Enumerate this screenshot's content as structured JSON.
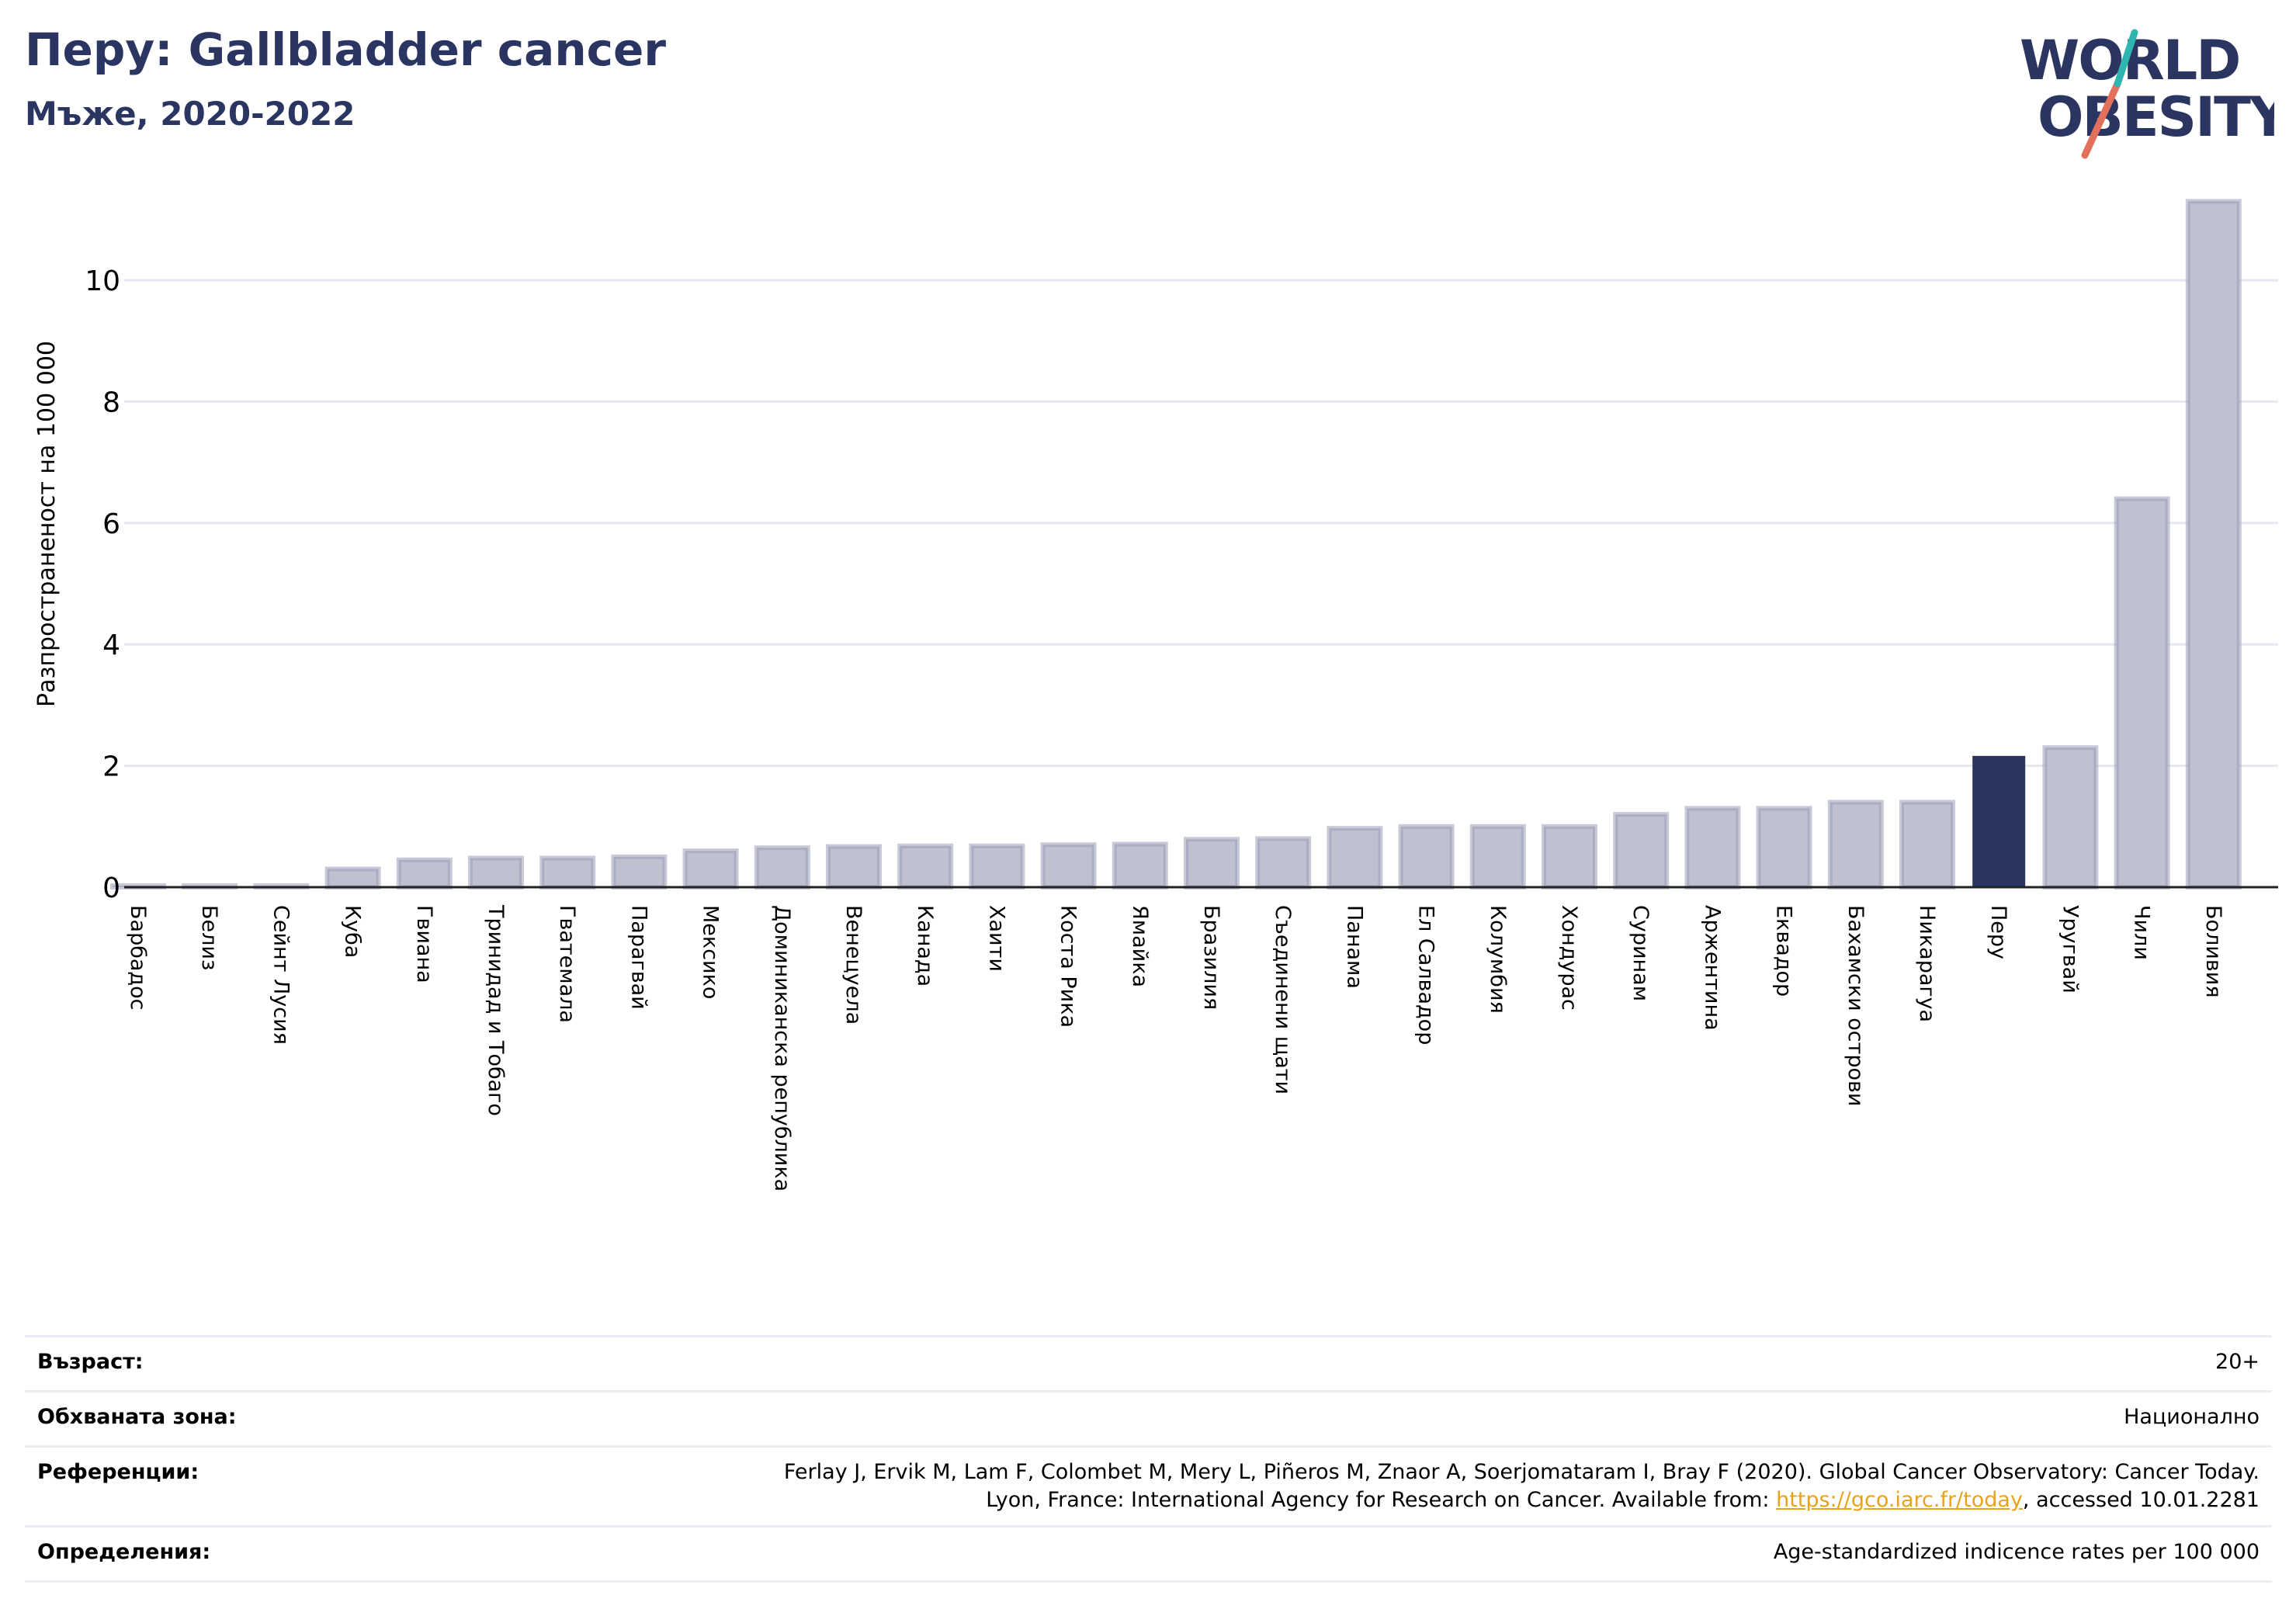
{
  "header": {
    "title": "Перу: Gallbladder cancer",
    "subtitle": "Мъже, 2020-2022"
  },
  "logo": {
    "line1": "WORLD",
    "line2": "OBESITY"
  },
  "colors": {
    "bar": "#bfc1d0",
    "bar_edge": "#9a9fb8",
    "highlight": "#2a3562",
    "grid": "#e6e8f0",
    "text_dark": "#2a3562",
    "link": "#e8a317"
  },
  "chart_data": {
    "type": "bar",
    "ylabel": "Разпространеност  на 100 000",
    "ylim": [
      0,
      11.5
    ],
    "yticks": [
      0,
      2,
      4,
      6,
      8,
      10
    ],
    "highlight": "Перу",
    "grid": true,
    "categories": [
      "Барбадос",
      "Белиз",
      "Сейнт Лусия",
      "Куба",
      "Гвиана",
      "Тринидад и Тобаго",
      "Гватемала",
      "Парагвай",
      "Мексико",
      "Доминиканска република",
      "Венецуела",
      "Канада",
      "Хаити",
      "Коста Рика",
      "Ямайка",
      "Бразилия",
      "Съединени щати",
      "Панама",
      "Ел Салвадор",
      "Колумбия",
      "Хондурас",
      "Суринам",
      "Аржентина",
      "Еквадор",
      "Бахамски острови",
      "Никарагуа",
      "Перу",
      "Уругвай",
      "Чили",
      "Боливия"
    ],
    "values": [
      0.02,
      0.02,
      0.02,
      0.3,
      0.45,
      0.48,
      0.48,
      0.5,
      0.6,
      0.65,
      0.67,
      0.68,
      0.68,
      0.7,
      0.71,
      0.79,
      0.8,
      0.97,
      1.0,
      1.0,
      1.0,
      1.2,
      1.3,
      1.3,
      1.4,
      1.4,
      2.15,
      2.3,
      6.4,
      11.3
    ]
  },
  "metadata": {
    "rows": [
      {
        "label": "Възраст:",
        "value": "20+"
      },
      {
        "label": "Обхваната зона:",
        "value": "Национално"
      },
      {
        "label": "Референции:",
        "line1": "Ferlay J, Ervik M, Lam F, Colombet M, Mery L, Piñeros M, Znaor A, Soerjomataram I, Bray F (2020). Global Cancer Observatory: Cancer Today.",
        "line2_prefix": "Lyon, France: International Agency for Research on Cancer. Available from: ",
        "link": "https://gco.iarc.fr/today",
        "line2_suffix": ", accessed 10.01.2281"
      },
      {
        "label": "Определения:",
        "value": "Age-standardized indicence rates per 100 000"
      }
    ]
  }
}
